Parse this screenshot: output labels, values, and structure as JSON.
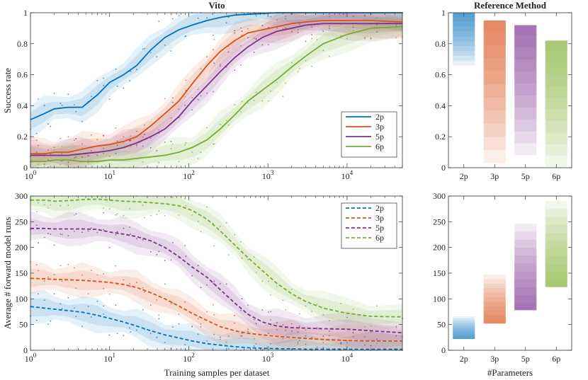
{
  "chart_data": [
    {
      "id": "vito_success",
      "type": "line",
      "title": "Vito",
      "xlabel": "",
      "ylabel": "Success rate",
      "xscale": "log",
      "xlim": [
        1,
        50000
      ],
      "ylim": [
        0,
        1
      ],
      "xticks": [
        {
          "v": 1,
          "b": "10",
          "e": "0"
        },
        {
          "v": 10,
          "b": "10",
          "e": "1"
        },
        {
          "v": 100,
          "b": "10",
          "e": "2"
        },
        {
          "v": 1000,
          "b": "10",
          "e": "3"
        },
        {
          "v": 10000,
          "b": "10",
          "e": "4"
        }
      ],
      "yticks": [
        {
          "v": 0,
          "t": "0"
        },
        {
          "v": 0.2,
          "t": "0.2"
        },
        {
          "v": 0.4,
          "t": "0.4"
        },
        {
          "v": 0.6,
          "t": "0.6"
        },
        {
          "v": 0.8,
          "t": "0.8"
        },
        {
          "v": 1,
          "t": "1"
        }
      ],
      "legend": {
        "position": "right-middle",
        "style": "solid"
      },
      "series": [
        {
          "name": "2p",
          "color": "#0072BD",
          "x": [
            1,
            1.5,
            2,
            3,
            4.5,
            7,
            10,
            15,
            22,
            33,
            50,
            75,
            110,
            170,
            250,
            380,
            560,
            850,
            1300,
            2000,
            3000,
            5000,
            10000,
            20000,
            50000
          ],
          "y": [
            0.31,
            0.35,
            0.38,
            0.39,
            0.39,
            0.47,
            0.55,
            0.6,
            0.66,
            0.76,
            0.84,
            0.89,
            0.92,
            0.95,
            0.97,
            0.985,
            0.99,
            0.995,
            1,
            1,
            1,
            1,
            1,
            1,
            1
          ]
        },
        {
          "name": "3p",
          "color": "#D95319",
          "x": [
            1,
            1.5,
            2,
            3,
            4.5,
            7,
            10,
            15,
            22,
            33,
            50,
            75,
            110,
            170,
            250,
            380,
            560,
            850,
            1300,
            2000,
            3000,
            5000,
            10000,
            20000,
            50000
          ],
          "y": [
            0.09,
            0.09,
            0.1,
            0.1,
            0.12,
            0.14,
            0.15,
            0.17,
            0.2,
            0.27,
            0.35,
            0.43,
            0.54,
            0.66,
            0.75,
            0.82,
            0.87,
            0.89,
            0.91,
            0.93,
            0.94,
            0.95,
            0.95,
            0.95,
            0.94
          ]
        },
        {
          "name": "5p",
          "color": "#7E2F8E",
          "x": [
            1,
            1.5,
            2,
            3,
            4.5,
            7,
            10,
            15,
            22,
            33,
            50,
            75,
            110,
            170,
            250,
            380,
            560,
            850,
            1300,
            2000,
            3000,
            5000,
            10000,
            20000,
            50000
          ],
          "y": [
            0.08,
            0.08,
            0.08,
            0.08,
            0.09,
            0.1,
            0.11,
            0.13,
            0.16,
            0.2,
            0.25,
            0.33,
            0.43,
            0.53,
            0.62,
            0.71,
            0.78,
            0.84,
            0.88,
            0.9,
            0.92,
            0.93,
            0.93,
            0.93,
            0.93
          ]
        },
        {
          "name": "6p",
          "color": "#77AC30",
          "x": [
            1,
            1.5,
            2,
            3,
            4.5,
            7,
            10,
            15,
            22,
            33,
            50,
            75,
            110,
            170,
            250,
            380,
            560,
            850,
            1300,
            2000,
            3000,
            5000,
            10000,
            20000,
            50000
          ],
          "y": [
            0.04,
            0.04,
            0.05,
            0.05,
            0.04,
            0.04,
            0.05,
            0.05,
            0.06,
            0.07,
            0.08,
            0.1,
            0.13,
            0.18,
            0.25,
            0.34,
            0.43,
            0.5,
            0.57,
            0.65,
            0.72,
            0.8,
            0.86,
            0.9,
            0.91
          ]
        }
      ]
    },
    {
      "id": "vito_runs",
      "type": "line",
      "title": "",
      "xlabel": "Training samples per dataset",
      "ylabel": "Average # forward model runs",
      "xscale": "log",
      "xlim": [
        1,
        50000
      ],
      "ylim": [
        0,
        300
      ],
      "xticks": [
        {
          "v": 1,
          "b": "10",
          "e": "0"
        },
        {
          "v": 10,
          "b": "10",
          "e": "1"
        },
        {
          "v": 100,
          "b": "10",
          "e": "2"
        },
        {
          "v": 1000,
          "b": "10",
          "e": "3"
        },
        {
          "v": 10000,
          "b": "10",
          "e": "4"
        }
      ],
      "yticks": [
        {
          "v": 0,
          "t": "0"
        },
        {
          "v": 50,
          "t": "50"
        },
        {
          "v": 100,
          "t": "100"
        },
        {
          "v": 150,
          "t": "150"
        },
        {
          "v": 200,
          "t": "200"
        },
        {
          "v": 250,
          "t": "250"
        },
        {
          "v": 300,
          "t": "300"
        }
      ],
      "legend": {
        "position": "top-right",
        "style": "dashed"
      },
      "series": [
        {
          "name": "2p",
          "color": "#0072BD",
          "x": [
            1,
            1.5,
            2,
            3,
            4.5,
            7,
            10,
            15,
            22,
            33,
            50,
            75,
            110,
            170,
            250,
            380,
            560,
            850,
            1300,
            2000,
            3000,
            5000,
            10000,
            20000,
            50000
          ],
          "y": [
            85,
            82,
            80,
            77,
            74,
            68,
            62,
            55,
            47,
            38,
            30,
            24,
            18,
            13,
            10,
            7,
            5,
            4,
            3,
            3,
            2,
            2,
            2,
            2,
            2
          ]
        },
        {
          "name": "3p",
          "color": "#D95319",
          "x": [
            1,
            1.5,
            2,
            3,
            4.5,
            7,
            10,
            15,
            22,
            33,
            50,
            75,
            110,
            170,
            250,
            380,
            560,
            850,
            1300,
            2000,
            3000,
            5000,
            10000,
            20000,
            50000
          ],
          "y": [
            140,
            139,
            138,
            137,
            136,
            134,
            132,
            128,
            122,
            112,
            100,
            86,
            72,
            58,
            46,
            38,
            33,
            30,
            27,
            25,
            23,
            21,
            19,
            18,
            18
          ]
        },
        {
          "name": "5p",
          "color": "#7E2F8E",
          "x": [
            1,
            1.5,
            2,
            3,
            4.5,
            7,
            10,
            15,
            22,
            33,
            50,
            75,
            110,
            170,
            250,
            380,
            560,
            850,
            1300,
            2000,
            3000,
            5000,
            10000,
            20000,
            50000
          ],
          "y": [
            237,
            237,
            236,
            236,
            236,
            235,
            230,
            226,
            221,
            213,
            200,
            182,
            162,
            142,
            118,
            92,
            70,
            55,
            47,
            44,
            43,
            42,
            41,
            38,
            34
          ]
        },
        {
          "name": "6p",
          "color": "#77AC30",
          "x": [
            1,
            1.5,
            2,
            3,
            4.5,
            7,
            10,
            15,
            22,
            33,
            50,
            75,
            110,
            170,
            250,
            380,
            560,
            850,
            1300,
            2000,
            3000,
            5000,
            10000,
            20000,
            50000
          ],
          "y": [
            292,
            292,
            290,
            291,
            293,
            294,
            292,
            290,
            289,
            287,
            285,
            281,
            272,
            255,
            232,
            205,
            180,
            155,
            130,
            110,
            95,
            82,
            72,
            66,
            65
          ]
        }
      ]
    },
    {
      "id": "ref_success",
      "type": "bar",
      "title": "Reference Method",
      "xlabel": "",
      "ylabel": "",
      "categories": [
        "2p",
        "3p",
        "5p",
        "6p"
      ],
      "ylim": [
        0,
        1
      ],
      "yticks": [
        {
          "v": 0,
          "t": "0"
        },
        {
          "v": 0.2,
          "t": "0.2"
        },
        {
          "v": 0.4,
          "t": "0.4"
        },
        {
          "v": 0.6,
          "t": "0.6"
        },
        {
          "v": 0.8,
          "t": "0.8"
        },
        {
          "v": 1,
          "t": "1"
        }
      ],
      "ranges": [
        {
          "name": "2p",
          "color": "#0072BD",
          "low": 0.66,
          "high": 1.0
        },
        {
          "name": "3p",
          "color": "#D95319",
          "low": 0.03,
          "high": 0.95
        },
        {
          "name": "5p",
          "color": "#7E2F8E",
          "low": 0.08,
          "high": 0.92
        },
        {
          "name": "6p",
          "color": "#77AC30",
          "low": 0.0,
          "high": 0.82
        }
      ]
    },
    {
      "id": "ref_runs",
      "type": "bar",
      "title": "",
      "xlabel": "#Parameters",
      "ylabel": "",
      "categories": [
        "2p",
        "3p",
        "5p",
        "6p"
      ],
      "ylim": [
        0,
        300
      ],
      "yticks": [
        {
          "v": 0,
          "t": "0"
        },
        {
          "v": 50,
          "t": "50"
        },
        {
          "v": 100,
          "t": "100"
        },
        {
          "v": 150,
          "t": "150"
        },
        {
          "v": 200,
          "t": "200"
        },
        {
          "v": 250,
          "t": "250"
        },
        {
          "v": 300,
          "t": "300"
        }
      ],
      "ranges": [
        {
          "name": "2p",
          "color": "#0072BD",
          "low": 22,
          "high": 66
        },
        {
          "name": "3p",
          "color": "#D95319",
          "low": 52,
          "high": 147
        },
        {
          "name": "5p",
          "color": "#7E2F8E",
          "low": 78,
          "high": 246
        },
        {
          "name": "6p",
          "color": "#77AC30",
          "low": 123,
          "high": 290
        }
      ]
    }
  ]
}
